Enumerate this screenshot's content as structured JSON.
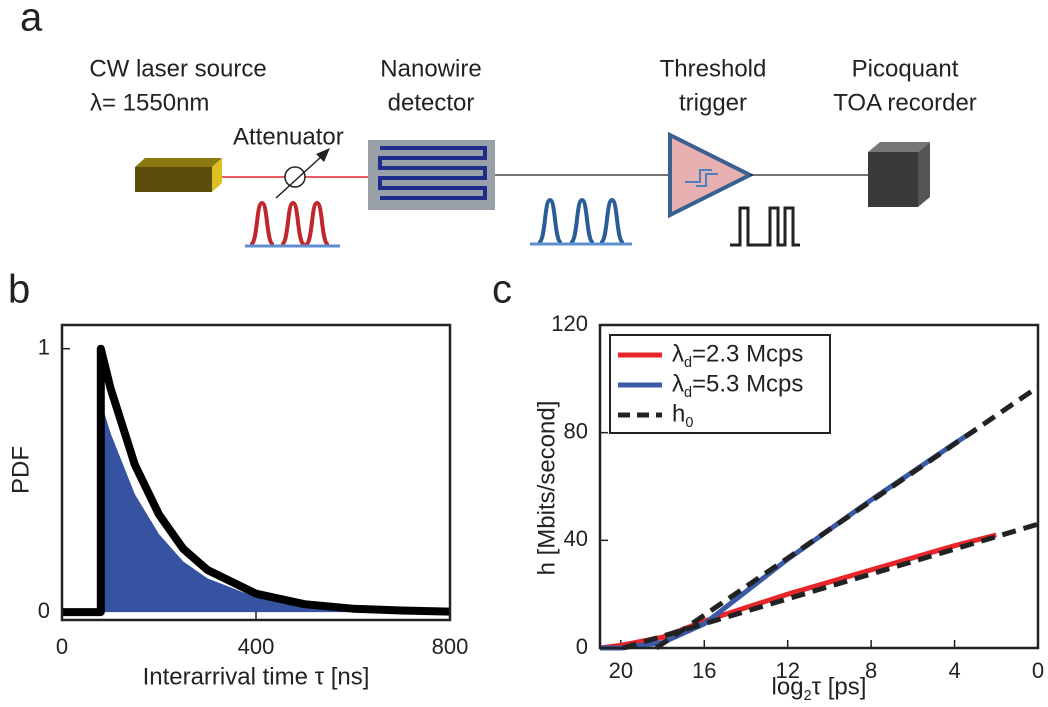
{
  "panels": {
    "a": "a",
    "b": "b",
    "c": "c"
  },
  "diagram": {
    "laser": "CW laser source",
    "wavelength": "λ= 1550nm",
    "attenuator": "Attenuator",
    "detector": [
      "Nanowire",
      "detector"
    ],
    "trigger": [
      "Threshold",
      "trigger"
    ],
    "recorder": [
      "Picoquant",
      "TOA recorder"
    ]
  },
  "chart_data": [
    {
      "type": "line",
      "x_label": "Interarrival time τ [ns]",
      "y_label": "PDF",
      "x": [
        0,
        80,
        80,
        100,
        150,
        200,
        250,
        300,
        400,
        500,
        600,
        700,
        800
      ],
      "values": [
        0,
        0,
        1,
        0.85,
        0.56,
        0.37,
        0.24,
        0.16,
        0.07,
        0.03,
        0.013,
        0.006,
        0.002
      ],
      "color": "#000000",
      "fill_color": "#3553a0",
      "xlim": [
        0,
        800
      ],
      "xticks": [
        0,
        400,
        800
      ],
      "ylim": [
        -0.03,
        1.09
      ],
      "yticks": [
        0,
        1
      ]
    },
    {
      "type": "line",
      "x_label": "log2τ [ps]",
      "y_label": "h [Mbits/second]",
      "legend": "upper left",
      "xlim": [
        21,
        0
      ],
      "xticks": [
        20,
        16,
        12,
        8,
        4,
        0
      ],
      "ylim": [
        0,
        120
      ],
      "yticks": [
        0,
        40,
        80,
        120
      ],
      "series": [
        {
          "name": "λd=2.3 Mcps",
          "color": "#e8262a",
          "x": [
            21,
            20,
            18,
            16,
            12,
            8,
            4,
            2
          ],
          "values": [
            0,
            1,
            4,
            10,
            20,
            29,
            38,
            42
          ]
        },
        {
          "name": "λd=5.3 Mcps",
          "color": "#3a5aa5",
          "x": [
            21,
            20,
            18,
            16,
            12,
            8,
            4,
            3
          ],
          "values": [
            0,
            0,
            2,
            9,
            33,
            55,
            76,
            81
          ]
        },
        {
          "name": "h0",
          "color": "#222222",
          "dash": true,
          "x": [
            19.9,
            0,
            null,
            18.3,
            0
          ],
          "values": [
            0,
            46,
            null,
            0,
            97
          ]
        }
      ]
    }
  ]
}
